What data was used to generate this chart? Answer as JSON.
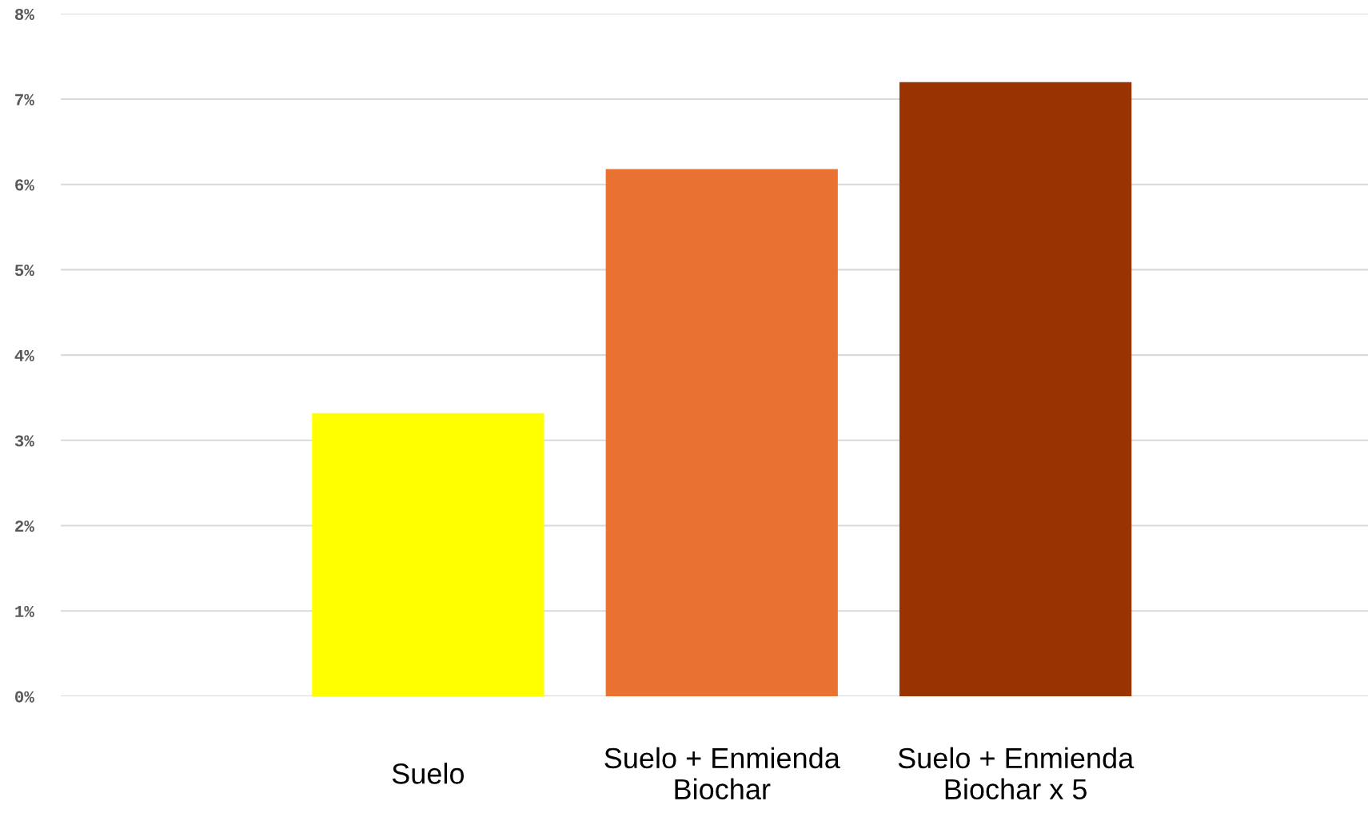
{
  "chart_data": {
    "type": "bar",
    "categories": [
      "Suelo",
      "Suelo + Enmienda\nBiochar",
      "Suelo + Enmienda\nBiochar x 5"
    ],
    "values": [
      3.32,
      6.18,
      7.2
    ],
    "colors": [
      "#ffff00",
      "#e97132",
      "#993300"
    ],
    "ylim": [
      0,
      8
    ],
    "yticks": [
      {
        "value": 0,
        "label": "0%"
      },
      {
        "value": 1,
        "label": "1%"
      },
      {
        "value": 2,
        "label": "2%"
      },
      {
        "value": 3,
        "label": "3%"
      },
      {
        "value": 4,
        "label": "4%"
      },
      {
        "value": 5,
        "label": "5%"
      },
      {
        "value": 6,
        "label": "6%"
      },
      {
        "value": 7,
        "label": "7%"
      },
      {
        "value": 8,
        "label": "8%"
      }
    ],
    "grid": "y",
    "legend": false
  }
}
